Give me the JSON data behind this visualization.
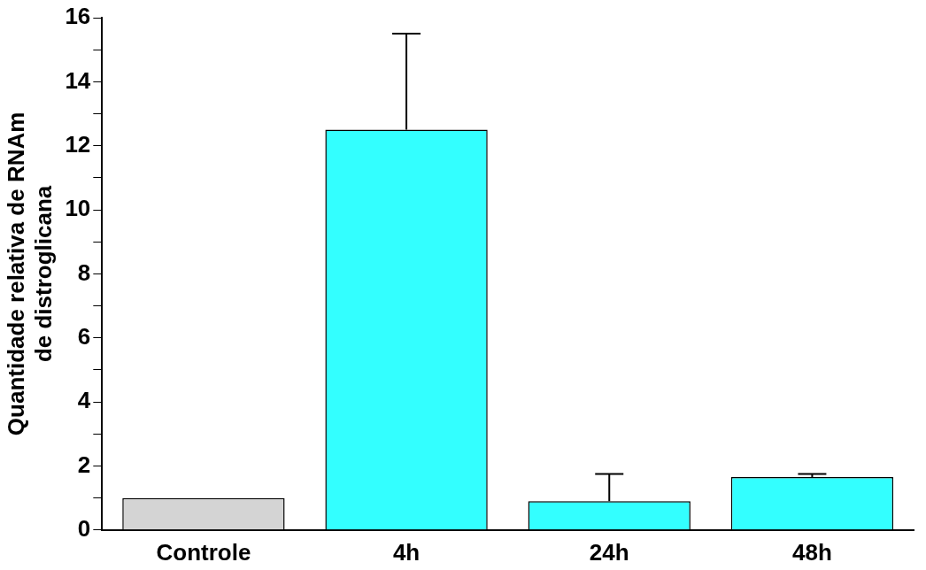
{
  "chart_data": {
    "type": "bar",
    "ylabel": "Quantidade relativa de RNAm\nde distroglicana",
    "categories": [
      "Controle",
      "4h",
      "24h",
      "48h"
    ],
    "values": [
      1.0,
      12.5,
      0.9,
      1.65
    ],
    "colors": [
      "#d4d4d4",
      "#33ffff",
      "#33ffff",
      "#33ffff"
    ],
    "errors": [
      null,
      [
        12.5,
        15.5
      ],
      [
        0.9,
        1.75
      ],
      [
        1.65,
        1.75
      ]
    ],
    "ylim": [
      0,
      16
    ],
    "yticks": [
      0,
      {
        "value": 1,
        "label": null
      },
      2,
      {
        "value": 3,
        "label": null
      },
      4,
      {
        "value": 5,
        "label": null
      },
      6,
      {
        "value": 7,
        "label": null
      },
      8,
      {
        "value": 9,
        "label": null
      },
      10,
      {
        "value": 11,
        "label": null
      },
      12,
      {
        "value": 13,
        "label": null
      },
      14,
      {
        "value": 15,
        "label": null
      },
      16
    ],
    "grid": false,
    "legend": false
  }
}
